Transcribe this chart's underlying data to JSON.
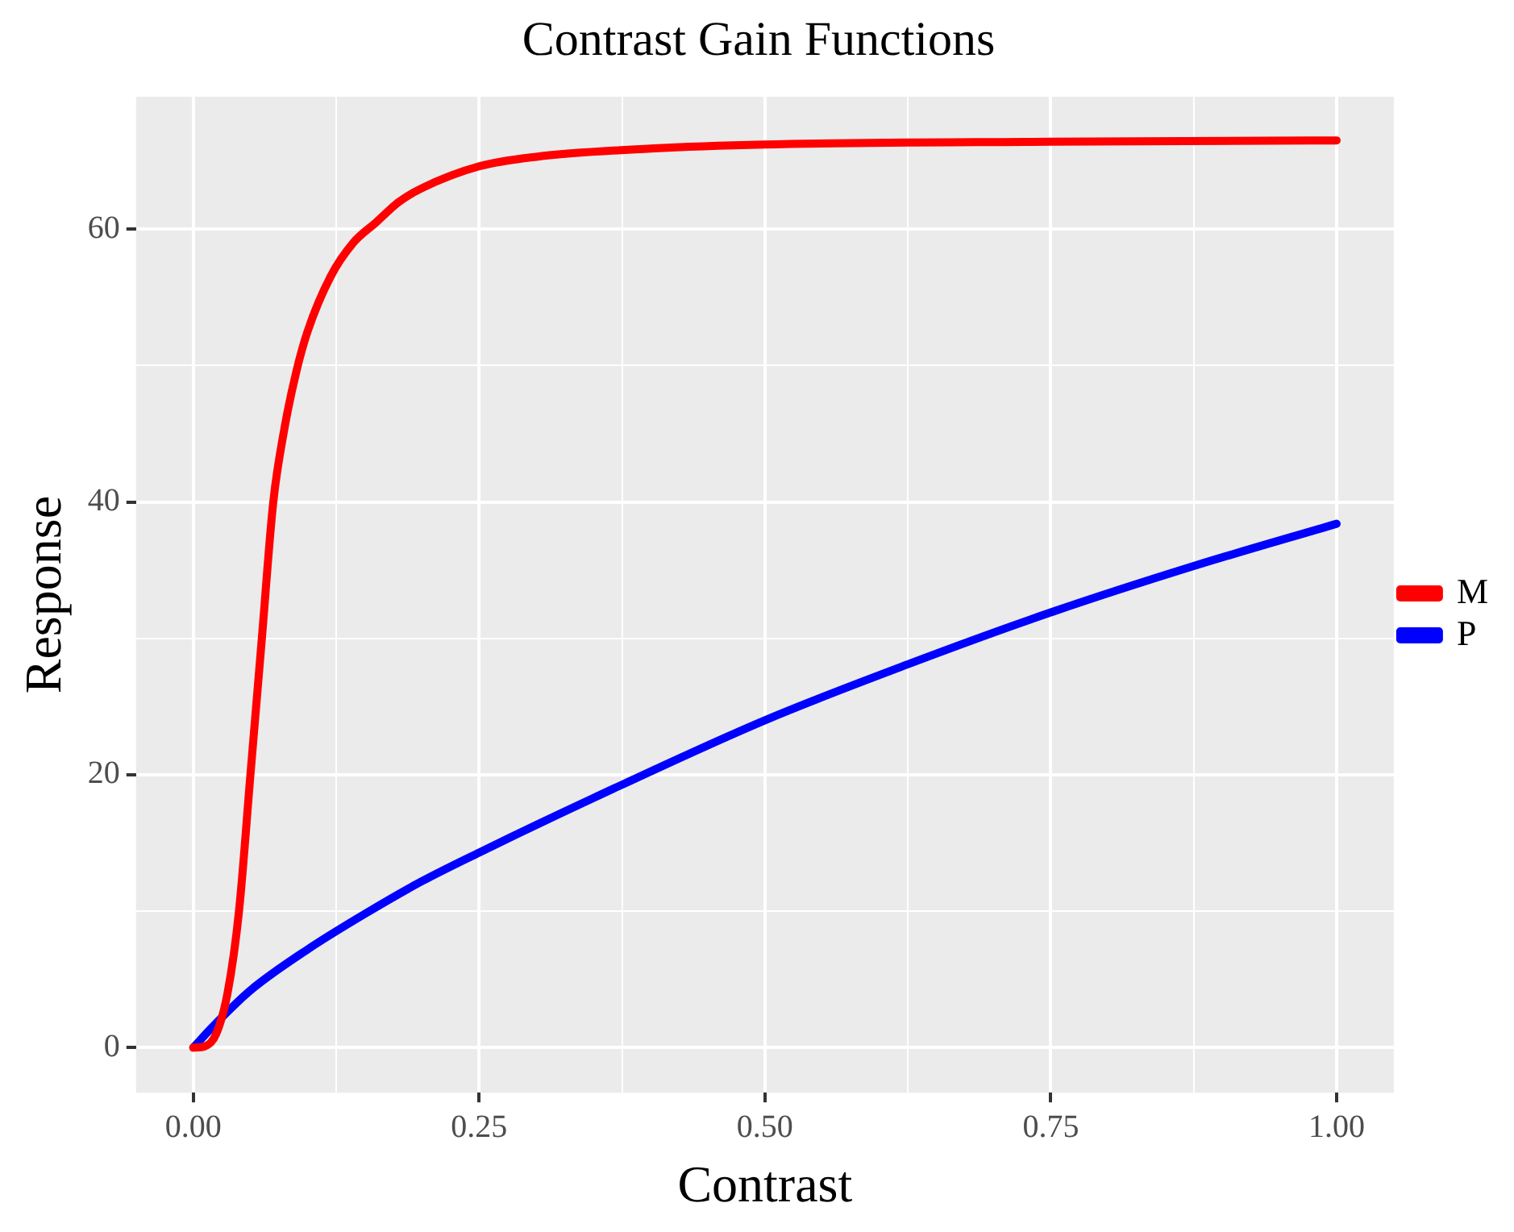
{
  "chart_data": {
    "type": "line",
    "title": "Contrast Gain Functions",
    "xlabel": "Contrast",
    "ylabel": "Response",
    "xlim": [
      -0.05,
      1.05
    ],
    "ylim": [
      -3.3,
      69.7
    ],
    "xticks": [
      {
        "value": 0,
        "label": "0.00"
      },
      {
        "value": 0.125,
        "label": null
      },
      {
        "value": 0.25,
        "label": "0.25"
      },
      {
        "value": 0.375,
        "label": null
      },
      {
        "value": 0.5,
        "label": "0.50"
      },
      {
        "value": 0.625,
        "label": null
      },
      {
        "value": 0.75,
        "label": "0.75"
      },
      {
        "value": 0.875,
        "label": null
      },
      {
        "value": 1,
        "label": "1.00"
      }
    ],
    "yticks": [
      0,
      {
        "value": 10,
        "label": null
      },
      20,
      {
        "value": 30,
        "label": null
      },
      40,
      {
        "value": 50,
        "label": null
      },
      60
    ],
    "grid": true,
    "legend": "right",
    "marker": "none",
    "line_style": "solid",
    "series": [
      {
        "name": "M",
        "color": "#ff0000",
        "x": [
          0,
          0.01,
          0.02,
          0.03,
          0.04,
          0.05,
          0.06,
          0.07,
          0.08,
          0.09,
          0.1,
          0.12,
          0.14,
          0.16,
          0.18,
          0.2,
          0.25,
          0.3,
          0.4,
          0.5,
          0.75,
          1.0
        ],
        "values": [
          0,
          0.1,
          1,
          4,
          10,
          20,
          30,
          40,
          45.5,
          49.5,
          52.5,
          56.5,
          59,
          60.5,
          62,
          63,
          64.6,
          65.3,
          65.9,
          66.2,
          66.4,
          66.5
        ]
      },
      {
        "name": "P",
        "color": "#0000ff",
        "x": [
          0,
          0.02,
          0.05,
          0.1,
          0.15,
          0.2,
          0.25,
          0.35,
          0.5,
          0.625,
          0.75,
          0.875,
          1.0
        ],
        "values": [
          0,
          1.8,
          4.2,
          7.2,
          9.8,
          12.2,
          14.3,
          18.3,
          24,
          28.1,
          31.9,
          35.3,
          38.4
        ]
      }
    ]
  }
}
